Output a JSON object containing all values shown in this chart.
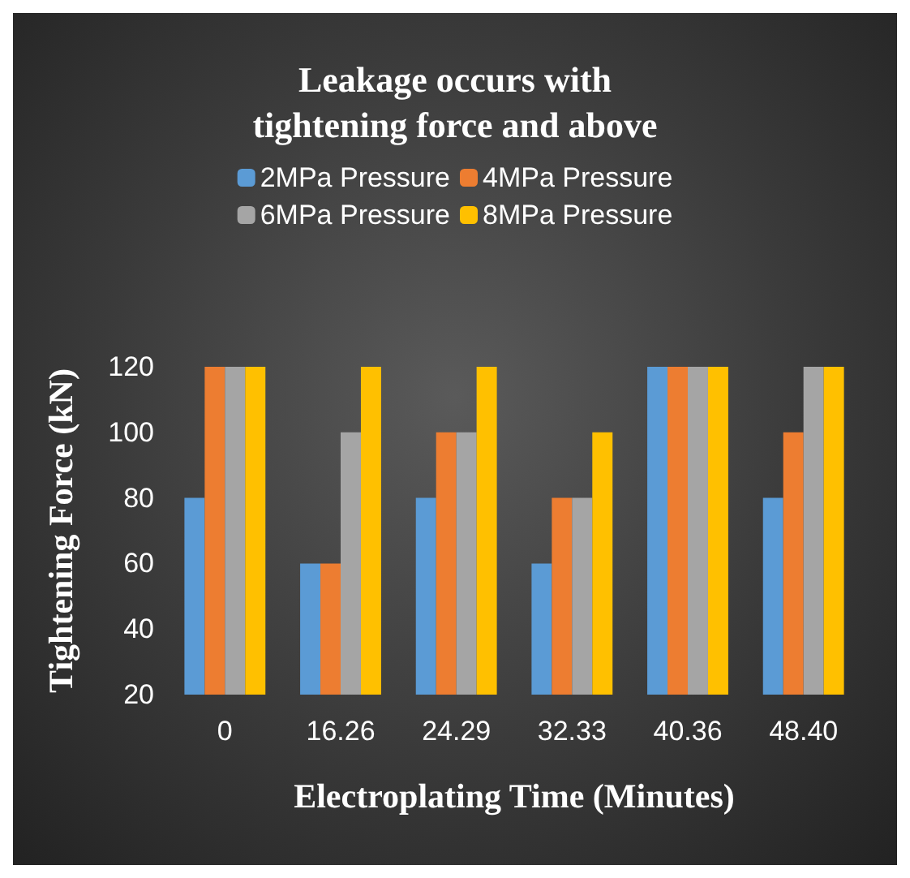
{
  "chart_data": {
    "type": "bar",
    "title": "Leakage occurs with\ntightening force and above",
    "xlabel": "Electroplating Time (Minutes)",
    "ylabel": "Tightening Force (kN)",
    "categories": [
      "0",
      "16.26",
      "24.29",
      "32.33",
      "40.36",
      "48.40"
    ],
    "series": [
      {
        "name": "2MPa Pressure",
        "color": "#5b9bd5",
        "values": [
          80,
          60,
          80,
          60,
          120,
          80
        ]
      },
      {
        "name": "4MPa Pressure",
        "color": "#ed7d31",
        "values": [
          120,
          60,
          100,
          80,
          120,
          100
        ]
      },
      {
        "name": "6MPa Pressure",
        "color": "#a5a5a5",
        "values": [
          120,
          100,
          100,
          80,
          120,
          120
        ]
      },
      {
        "name": "8MPa Pressure",
        "color": "#ffc000",
        "values": [
          120,
          120,
          120,
          100,
          120,
          120
        ]
      }
    ],
    "ylim": [
      20,
      120
    ],
    "yticks": [
      20,
      40,
      60,
      80,
      100,
      120
    ],
    "grid": false,
    "legend": "top"
  }
}
